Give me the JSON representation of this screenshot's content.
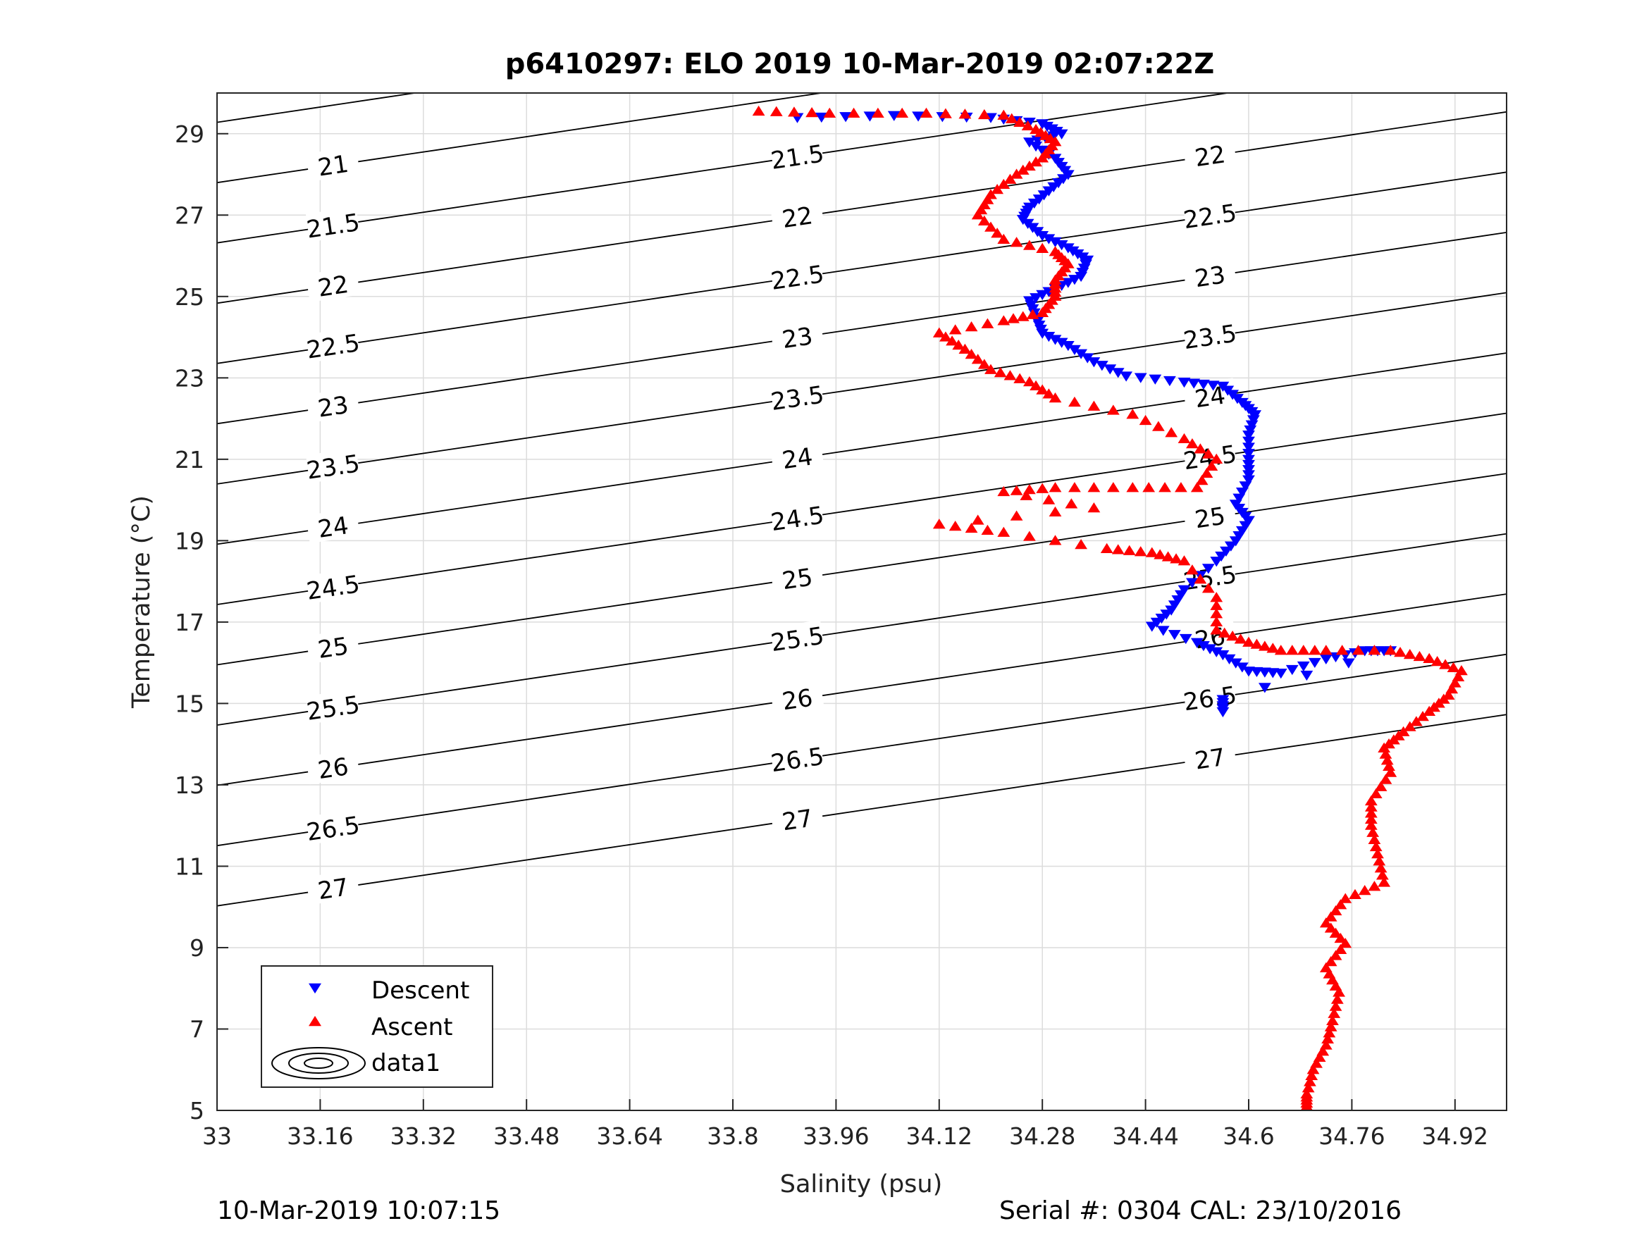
{
  "chart_data": {
    "type": "scatter",
    "title": "p6410297: ELO 2019 10-Mar-2019 02:07:22Z",
    "xlabel": "Salinity (psu)",
    "ylabel": "Temperature (°C)",
    "xlim": [
      33,
      35.0
    ],
    "ylim": [
      5,
      30
    ],
    "xticks": [
      "33",
      "33.16",
      "33.32",
      "33.48",
      "33.64",
      "33.8",
      "33.96",
      "34.12",
      "34.28",
      "34.44",
      "34.6",
      "34.76",
      "34.92"
    ],
    "yticks": [
      "5",
      "7",
      "9",
      "11",
      "13",
      "15",
      "17",
      "19",
      "21",
      "23",
      "25",
      "27",
      "29"
    ],
    "grid": true,
    "legend_position": "bottom-left",
    "series": [
      {
        "name": "Descent",
        "marker": "triangle-down",
        "color": "#0000ff",
        "points": [
          [
            33.9,
            29.4
          ],
          [
            34.05,
            29.45
          ],
          [
            34.2,
            29.4
          ],
          [
            34.28,
            29.25
          ],
          [
            34.31,
            29.0
          ],
          [
            34.26,
            28.8
          ],
          [
            34.3,
            28.4
          ],
          [
            34.32,
            28.0
          ],
          [
            34.29,
            27.6
          ],
          [
            34.26,
            27.2
          ],
          [
            34.25,
            26.9
          ],
          [
            34.28,
            26.5
          ],
          [
            34.32,
            26.2
          ],
          [
            34.35,
            25.9
          ],
          [
            34.34,
            25.5
          ],
          [
            34.3,
            25.2
          ],
          [
            34.26,
            24.9
          ],
          [
            34.27,
            24.5
          ],
          [
            34.28,
            24.1
          ],
          [
            34.32,
            23.8
          ],
          [
            34.36,
            23.4
          ],
          [
            34.41,
            23.05
          ],
          [
            34.5,
            22.9
          ],
          [
            34.56,
            22.8
          ],
          [
            34.59,
            22.4
          ],
          [
            34.61,
            22.1
          ],
          [
            34.6,
            21.6
          ],
          [
            34.6,
            21.0
          ],
          [
            34.6,
            20.5
          ],
          [
            34.58,
            19.9
          ],
          [
            34.6,
            19.5
          ],
          [
            34.58,
            19.0
          ],
          [
            34.55,
            18.5
          ],
          [
            34.5,
            17.8
          ],
          [
            34.48,
            17.3
          ],
          [
            34.45,
            16.9
          ],
          [
            34.52,
            16.5
          ],
          [
            34.56,
            16.2
          ],
          [
            34.6,
            15.8
          ],
          [
            34.65,
            15.75
          ],
          [
            34.72,
            16.1
          ],
          [
            34.78,
            16.3
          ],
          [
            34.82,
            16.3
          ],
          [
            34.56,
            15.1
          ],
          [
            34.56,
            14.8
          ]
        ]
      },
      {
        "name": "Ascent",
        "marker": "triangle-up",
        "color": "#ff0000",
        "points": [
          [
            33.84,
            29.55
          ],
          [
            33.95,
            29.5
          ],
          [
            34.1,
            29.5
          ],
          [
            34.22,
            29.45
          ],
          [
            34.27,
            29.1
          ],
          [
            34.3,
            28.8
          ],
          [
            34.28,
            28.4
          ],
          [
            34.24,
            28.0
          ],
          [
            34.2,
            27.5
          ],
          [
            34.18,
            27.0
          ],
          [
            34.22,
            26.4
          ],
          [
            34.3,
            26.1
          ],
          [
            34.32,
            25.8
          ],
          [
            34.3,
            25.4
          ],
          [
            34.3,
            25.0
          ],
          [
            34.28,
            24.6
          ],
          [
            34.22,
            24.4
          ],
          [
            34.12,
            24.1
          ],
          [
            34.16,
            23.7
          ],
          [
            34.2,
            23.2
          ],
          [
            34.26,
            22.9
          ],
          [
            34.3,
            22.5
          ],
          [
            34.42,
            22.1
          ],
          [
            34.5,
            21.5
          ],
          [
            34.55,
            21.0
          ],
          [
            34.52,
            20.3
          ],
          [
            34.42,
            20.3
          ],
          [
            34.3,
            20.3
          ],
          [
            34.22,
            20.2
          ],
          [
            34.36,
            19.8
          ],
          [
            34.12,
            19.4
          ],
          [
            34.22,
            19.2
          ],
          [
            34.38,
            18.8
          ],
          [
            34.45,
            18.7
          ],
          [
            34.5,
            18.5
          ],
          [
            34.55,
            17.6
          ],
          [
            34.55,
            16.8
          ],
          [
            34.6,
            16.5
          ],
          [
            34.65,
            16.3
          ],
          [
            34.72,
            16.3
          ],
          [
            34.82,
            16.3
          ],
          [
            34.88,
            16.1
          ],
          [
            34.93,
            15.8
          ],
          [
            34.91,
            15.2
          ],
          [
            34.88,
            14.8
          ],
          [
            34.84,
            14.3
          ],
          [
            34.81,
            13.9
          ],
          [
            34.82,
            13.3
          ],
          [
            34.79,
            12.6
          ],
          [
            34.79,
            12.0
          ],
          [
            34.8,
            11.3
          ],
          [
            34.81,
            10.6
          ],
          [
            34.75,
            10.2
          ],
          [
            34.72,
            9.6
          ],
          [
            34.75,
            9.1
          ],
          [
            34.72,
            8.5
          ],
          [
            34.74,
            7.9
          ],
          [
            34.73,
            7.2
          ],
          [
            34.72,
            6.6
          ],
          [
            34.7,
            6.0
          ],
          [
            34.69,
            5.4
          ],
          [
            34.69,
            5.1
          ]
        ]
      }
    ],
    "contour_series_name": "data1",
    "contour_levels": [
      "20.5",
      "21",
      "21.5",
      "22",
      "22.5",
      "23",
      "23.5",
      "24",
      "24.5",
      "25",
      "25.5",
      "26",
      "26.5",
      "27"
    ]
  },
  "footer": {
    "timestamp": "10-Mar-2019 10:07:15",
    "serial": "Serial #: 0304  CAL: 23/10/2016"
  }
}
